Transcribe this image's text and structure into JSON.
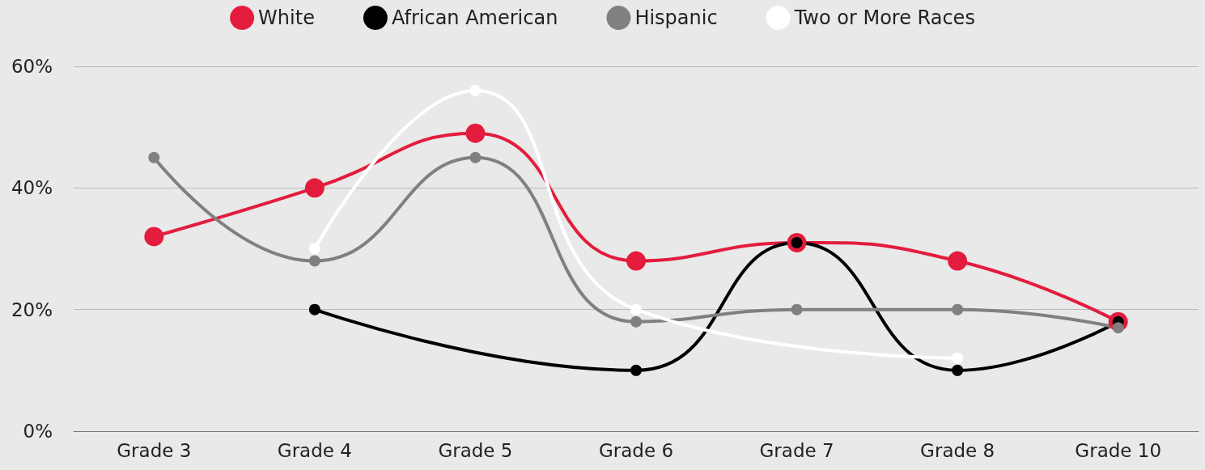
{
  "chart_data": {
    "type": "line",
    "categories": [
      "Grade 3",
      "Grade 4",
      "Grade 5",
      "Grade 6",
      "Grade 7",
      "Grade 8",
      "Grade 10"
    ],
    "series": [
      {
        "name": "White",
        "color": "#e31c3d",
        "values": [
          32,
          40,
          49,
          28,
          31,
          28,
          18
        ]
      },
      {
        "name": "African American",
        "color": "#000000",
        "values": [
          null,
          20,
          null,
          10,
          31,
          10,
          18
        ]
      },
      {
        "name": "Hispanic",
        "color": "#808080",
        "values": [
          45,
          28,
          45,
          18,
          20,
          20,
          17
        ]
      },
      {
        "name": "Two or More Races",
        "color": "#ffffff",
        "values": [
          null,
          30,
          56,
          20,
          null,
          12,
          null
        ]
      }
    ],
    "ylim": [
      0,
      60
    ],
    "yticks": [
      {
        "value": 0,
        "label": "0%"
      },
      {
        "value": 20,
        "label": "20%"
      },
      {
        "value": 40,
        "label": "40%"
      },
      {
        "value": 60,
        "label": "60%"
      }
    ],
    "grid": "y",
    "legend": "top",
    "marker": "circle",
    "line_style": "solid"
  }
}
